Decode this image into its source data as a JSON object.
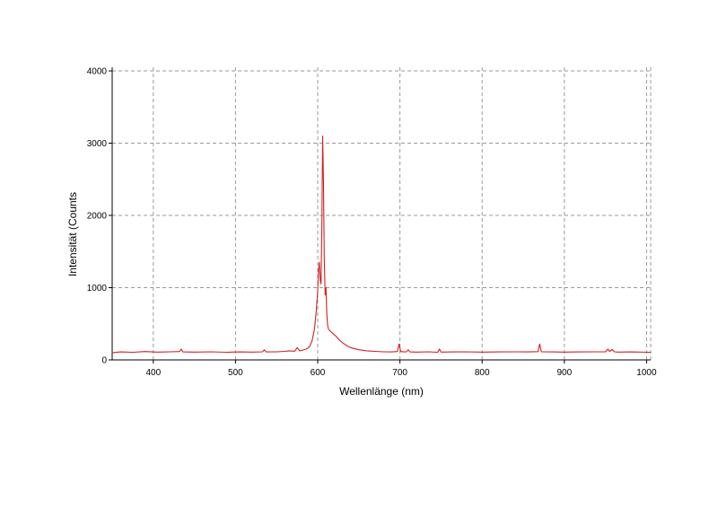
{
  "chart_data": {
    "type": "line",
    "xlabel": "Wellenlänge (nm)",
    "ylabel": "Intensität (Counts",
    "xlim": [
      350,
      1005
    ],
    "ylim": [
      0,
      4050
    ],
    "x_ticks": [
      400,
      500,
      600,
      700,
      800,
      900,
      1000
    ],
    "y_ticks": [
      0,
      1000,
      2000,
      3000,
      4000
    ],
    "grid": true,
    "series": [
      {
        "color": "#d42020",
        "x": [
          350,
          360,
          375,
          390,
          405,
          420,
          432,
          434,
          436,
          450,
          470,
          490,
          505,
          520,
          533,
          535,
          537,
          550,
          560,
          565,
          572,
          575,
          578,
          582,
          586,
          590,
          593,
          596,
          598,
          600,
          601,
          602,
          603,
          604,
          605,
          606,
          607,
          608,
          609,
          610,
          611,
          612,
          613,
          615,
          618,
          622,
          626,
          630,
          635,
          640,
          650,
          660,
          670,
          680,
          690,
          697,
          699,
          701,
          705,
          708,
          710,
          712,
          720,
          735,
          746,
          748,
          750,
          765,
          780,
          800,
          820,
          840,
          855,
          868,
          870,
          872,
          885,
          900,
          920,
          940,
          950,
          953,
          955,
          958,
          961,
          965,
          980,
          1005
        ],
        "y": [
          100,
          110,
          105,
          115,
          108,
          112,
          115,
          150,
          110,
          108,
          112,
          106,
          110,
          108,
          112,
          140,
          110,
          112,
          118,
          125,
          120,
          170,
          125,
          135,
          150,
          180,
          260,
          420,
          650,
          950,
          1250,
          1350,
          1100,
          1050,
          1800,
          3100,
          2500,
          1400,
          900,
          1000,
          650,
          480,
          430,
          400,
          370,
          330,
          280,
          240,
          200,
          170,
          140,
          125,
          118,
          112,
          110,
          115,
          220,
          115,
          110,
          112,
          140,
          110,
          108,
          112,
          106,
          150,
          108,
          110,
          112,
          108,
          110,
          112,
          110,
          114,
          220,
          112,
          110,
          108,
          110,
          112,
          112,
          150,
          115,
          145,
          112,
          108,
          110,
          105
        ]
      }
    ]
  }
}
